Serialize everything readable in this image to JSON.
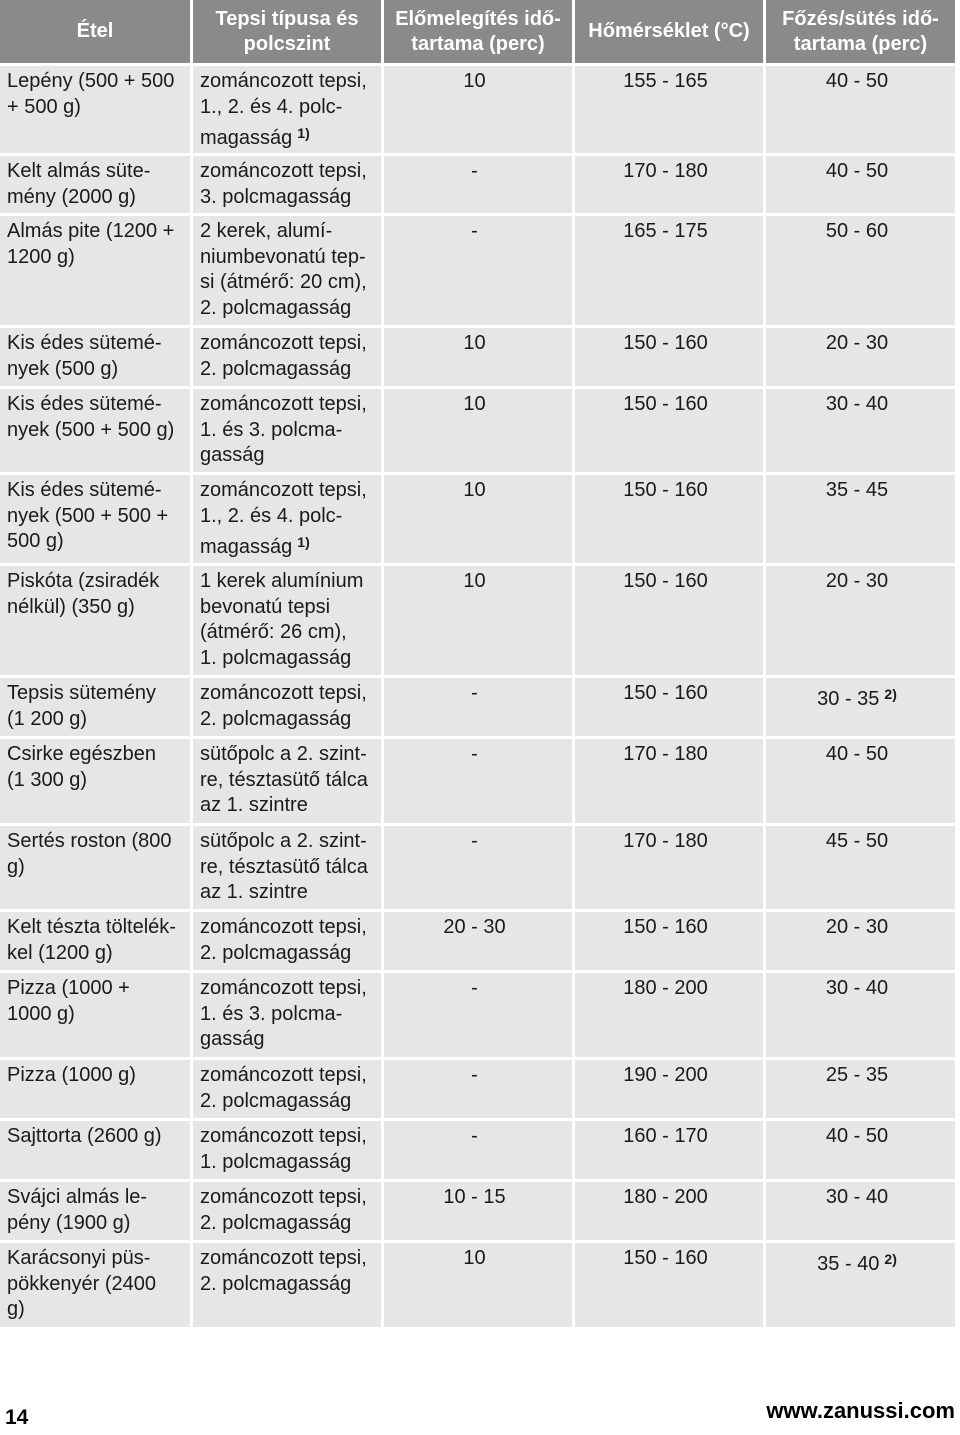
{
  "colors": {
    "header_background": "#8a8a8a",
    "header_text": "#ffffff",
    "row_background": "#e6e6e6",
    "text": "#1a1a1a"
  },
  "table": {
    "headers": {
      "food": "Étel",
      "tray": "Tepsi típusa és\npolcszint",
      "preheat": "Előmelegítés idő-\ntartama (perc)",
      "temperature": "Hőmérséklet (°C)",
      "cook_time": "Főzés/sütés idő-\ntartama (perc)"
    },
    "rows": [
      {
        "food": "Lepény (500 + 500\n+ 500 g)",
        "tray": "zománcozott tepsi,\n1., 2. és 4. polc-\nmagasság",
        "tray_note": "1)",
        "preheat": "10",
        "temperature": "155 - 165",
        "cook_time": "40 - 50"
      },
      {
        "food": "Kelt almás süte-\nmény (2000 g)",
        "tray": "zománcozott tepsi,\n3. polcmagasság",
        "preheat": "-",
        "temperature": "170 - 180",
        "cook_time": "40 - 50"
      },
      {
        "food": "Almás pite (1200 +\n1200 g)",
        "tray": "2 kerek, alumí-\nniumbevonatú tep-\nsi (átmérő: 20 cm),\n2. polcmagasság",
        "preheat": "-",
        "temperature": "165 - 175",
        "cook_time": "50 - 60"
      },
      {
        "food": "Kis édes sütemé-\nnyek (500 g)",
        "tray": "zománcozott tepsi,\n2. polcmagasság",
        "preheat": "10",
        "temperature": "150 - 160",
        "cook_time": "20 - 30"
      },
      {
        "food": "Kis édes sütemé-\nnyek (500 + 500 g)",
        "tray": "zománcozott tepsi,\n1. és 3. polcma-\ngasság",
        "preheat": "10",
        "temperature": "150 - 160",
        "cook_time": "30 - 40"
      },
      {
        "food": "Kis édes sütemé-\nnyek (500 + 500 +\n500 g)",
        "tray": "zománcozott tepsi,\n1., 2. és 4. polc-\nmagasság",
        "tray_note": "1)",
        "preheat": "10",
        "temperature": "150 - 160",
        "cook_time": "35 - 45"
      },
      {
        "food": "Piskóta (zsiradék\nnélkül) (350 g)",
        "tray": "1 kerek alumínium\nbevonatú tepsi\n(átmérő: 26 cm),\n1. polcmagasság",
        "preheat": "10",
        "temperature": "150 - 160",
        "cook_time": "20 - 30"
      },
      {
        "food": "Tepsis sütemény\n(1 200 g)",
        "tray": "zománcozott tepsi,\n2. polcmagasság",
        "preheat": "-",
        "temperature": "150 - 160",
        "cook_time": "30 - 35",
        "cook_time_note": "2)"
      },
      {
        "food": "Csirke egészben\n(1 300 g)",
        "tray": "sütőpolc a 2. szint-\nre, tésztasütő tálca\naz 1. szintre",
        "preheat": "-",
        "temperature": "170 - 180",
        "cook_time": "40 - 50"
      },
      {
        "food": "Sertés roston (800\ng)",
        "tray": "sütőpolc a 2. szint-\nre, tésztasütő tálca\naz 1. szintre",
        "preheat": "-",
        "temperature": "170 - 180",
        "cook_time": "45 - 50"
      },
      {
        "food": "Kelt tészta töltelék-\nkel (1200 g)",
        "tray": "zománcozott tepsi,\n2. polcmagasság",
        "preheat": "20 - 30",
        "temperature": "150 - 160",
        "cook_time": "20 - 30"
      },
      {
        "food": "Pizza (1000 +\n1000 g)",
        "tray": "zománcozott tepsi,\n1. és 3. polcma-\ngasság",
        "preheat": "-",
        "temperature": "180 - 200",
        "cook_time": "30 - 40"
      },
      {
        "food": "Pizza (1000 g)",
        "tray": "zománcozott tepsi,\n2. polcmagasság",
        "preheat": "-",
        "temperature": "190 - 200",
        "cook_time": "25 - 35"
      },
      {
        "food": "Sajttorta (2600 g)",
        "tray": "zománcozott tepsi,\n1. polcmagasság",
        "preheat": "-",
        "temperature": "160 - 170",
        "cook_time": "40 - 50"
      },
      {
        "food": "Svájci almás le-\npény (1900 g)",
        "tray": "zománcozott tepsi,\n2. polcmagasság",
        "preheat": "10 - 15",
        "temperature": "180 - 200",
        "cook_time": "30 - 40"
      },
      {
        "food": "Karácsonyi püs-\npökkenyér (2400\ng)",
        "tray": "zománcozott tepsi,\n2. polcmagasság",
        "preheat": "10",
        "temperature": "150 - 160",
        "cook_time": "35 - 40",
        "cook_time_note": "2)"
      }
    ]
  },
  "footer": {
    "page_number": "14",
    "website": "www.zanussi.com"
  }
}
